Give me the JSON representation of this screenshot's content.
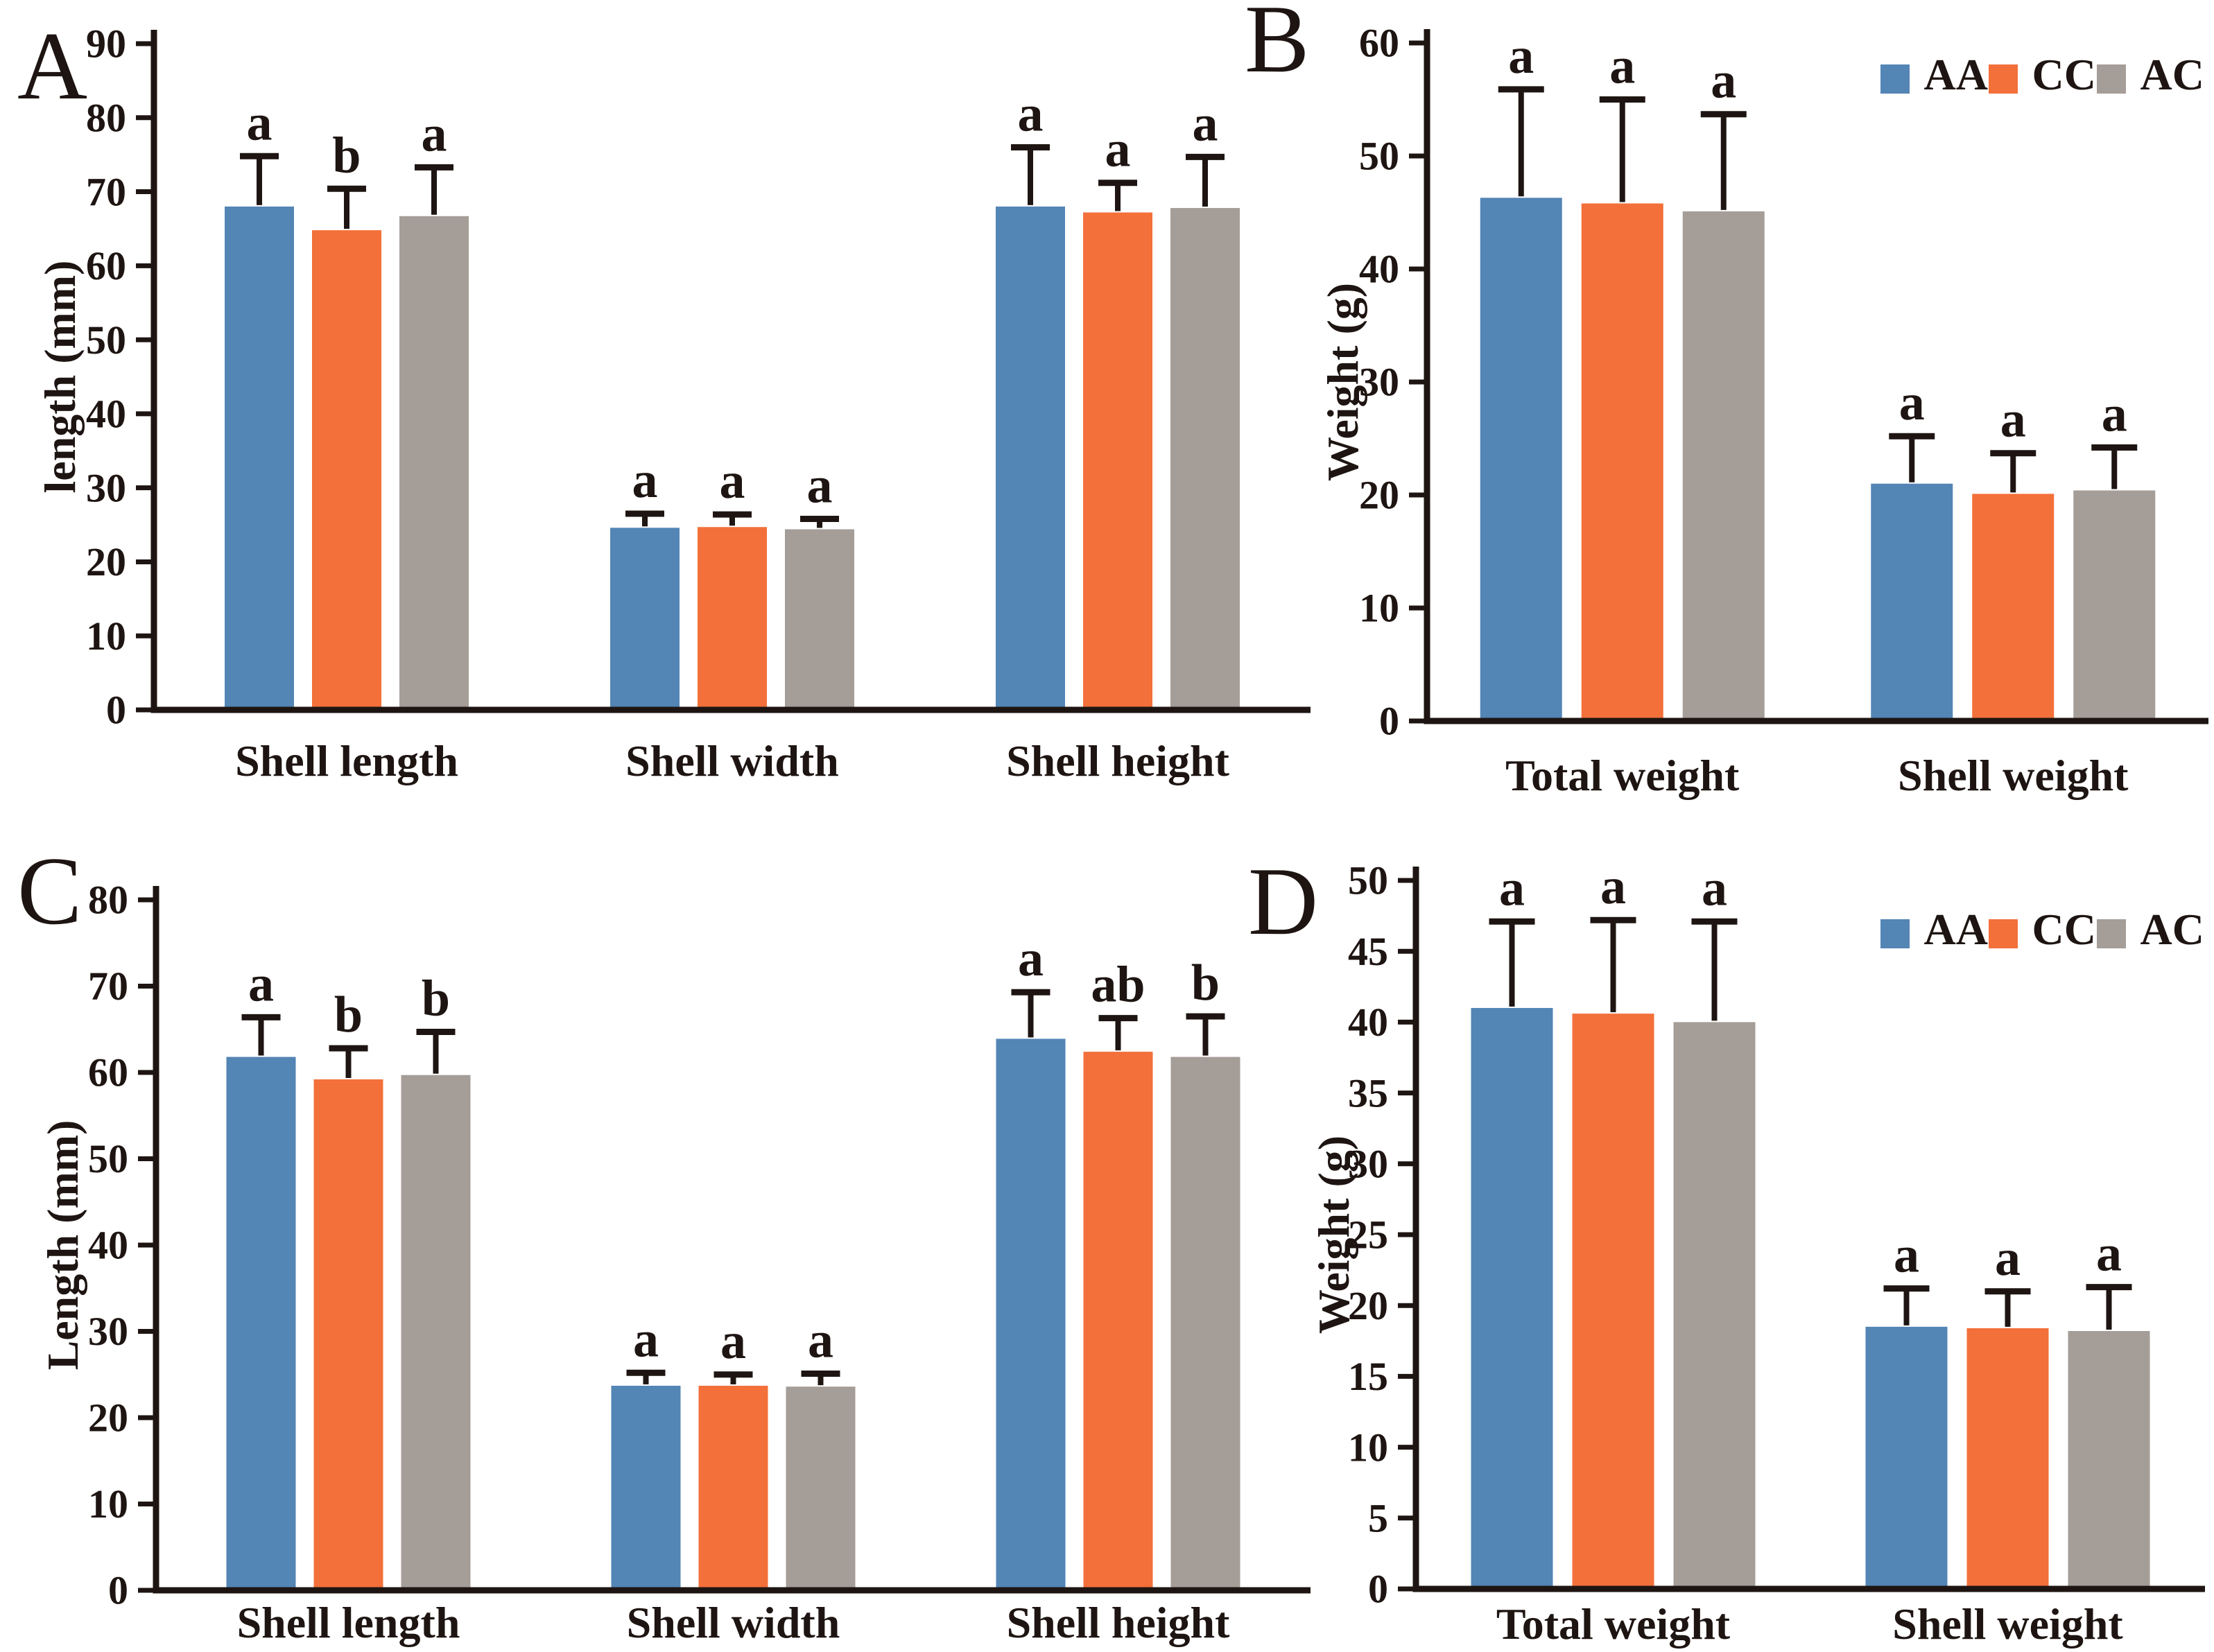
{
  "figure_background": "#ffffff",
  "ink_color": "#1e1512",
  "series_colors": {
    "AA": "#5385b5",
    "CC": "#f3703a",
    "AC": "#a59d97"
  },
  "chart_data": [
    {
      "type": "bar",
      "panel_letter": "A",
      "ylabel": "length (mm)",
      "ylim": [
        0,
        90
      ],
      "ytick_step": 10,
      "grid": false,
      "legend_position": "none",
      "categories": [
        "Shell length",
        "Shell width",
        "Shell height"
      ],
      "series": [
        {
          "name": "AA",
          "values": [
            68.0,
            24.6,
            68.0
          ],
          "errors": [
            6.8,
            1.9,
            8.0
          ],
          "letters": [
            "a",
            "a",
            "a"
          ]
        },
        {
          "name": "CC",
          "values": [
            64.8,
            24.7,
            67.2
          ],
          "errors": [
            5.6,
            1.7,
            4.0
          ],
          "letters": [
            "b",
            "a",
            "a"
          ]
        },
        {
          "name": "AC",
          "values": [
            66.7,
            24.4,
            67.8
          ],
          "errors": [
            6.6,
            1.4,
            6.9
          ],
          "letters": [
            "a",
            "a",
            "a"
          ]
        }
      ]
    },
    {
      "type": "bar",
      "panel_letter": "B",
      "ylabel": "Weight (g)",
      "ylim": [
        0,
        60
      ],
      "ytick_step": 10,
      "grid": false,
      "legend_position": "top-right",
      "legend_items": [
        "AA",
        "CC",
        "AC"
      ],
      "categories": [
        "Total weight",
        "Shell weight"
      ],
      "series": [
        {
          "name": "AA",
          "values": [
            46.3,
            21.0
          ],
          "errors": [
            9.6,
            4.2
          ],
          "letters": [
            "a",
            "a"
          ]
        },
        {
          "name": "CC",
          "values": [
            45.8,
            20.1
          ],
          "errors": [
            9.2,
            3.6
          ],
          "letters": [
            "a",
            "a"
          ]
        },
        {
          "name": "AC",
          "values": [
            45.1,
            20.4
          ],
          "errors": [
            8.6,
            3.8
          ],
          "letters": [
            "a",
            "a"
          ]
        }
      ]
    },
    {
      "type": "bar",
      "panel_letter": "C",
      "ylabel": "Length (mm)",
      "ylim": [
        0,
        80
      ],
      "ytick_step": 10,
      "grid": false,
      "legend_position": "none",
      "categories": [
        "Shell length",
        "Shell width",
        "Shell height"
      ],
      "series": [
        {
          "name": "AA",
          "values": [
            61.8,
            23.7,
            63.9
          ],
          "errors": [
            4.6,
            1.5,
            5.4
          ],
          "letters": [
            "a",
            "a",
            "a"
          ]
        },
        {
          "name": "CC",
          "values": [
            59.2,
            23.7,
            62.4
          ],
          "errors": [
            3.6,
            1.3,
            3.9
          ],
          "letters": [
            "b",
            "a",
            "ab"
          ]
        },
        {
          "name": "AC",
          "values": [
            59.7,
            23.6,
            61.8
          ],
          "errors": [
            5.0,
            1.5,
            4.7
          ],
          "letters": [
            "b",
            "a",
            "b"
          ]
        }
      ]
    },
    {
      "type": "bar",
      "panel_letter": "D",
      "ylabel": "Weight (g)",
      "ylim": [
        0,
        50
      ],
      "ytick_step": 5,
      "grid": false,
      "legend_position": "top-right",
      "legend_items": [
        "AA",
        "CC",
        "AC"
      ],
      "categories": [
        "Total weight",
        "Shell weight"
      ],
      "series": [
        {
          "name": "AA",
          "values": [
            41.0,
            18.5
          ],
          "errors": [
            6.1,
            2.7
          ],
          "letters": [
            "a",
            "a"
          ]
        },
        {
          "name": "CC",
          "values": [
            40.6,
            18.4
          ],
          "errors": [
            6.6,
            2.6
          ],
          "letters": [
            "a",
            "a"
          ]
        },
        {
          "name": "AC",
          "values": [
            40.0,
            18.2
          ],
          "errors": [
            7.1,
            3.1
          ],
          "letters": [
            "a",
            "a"
          ]
        }
      ]
    }
  ]
}
